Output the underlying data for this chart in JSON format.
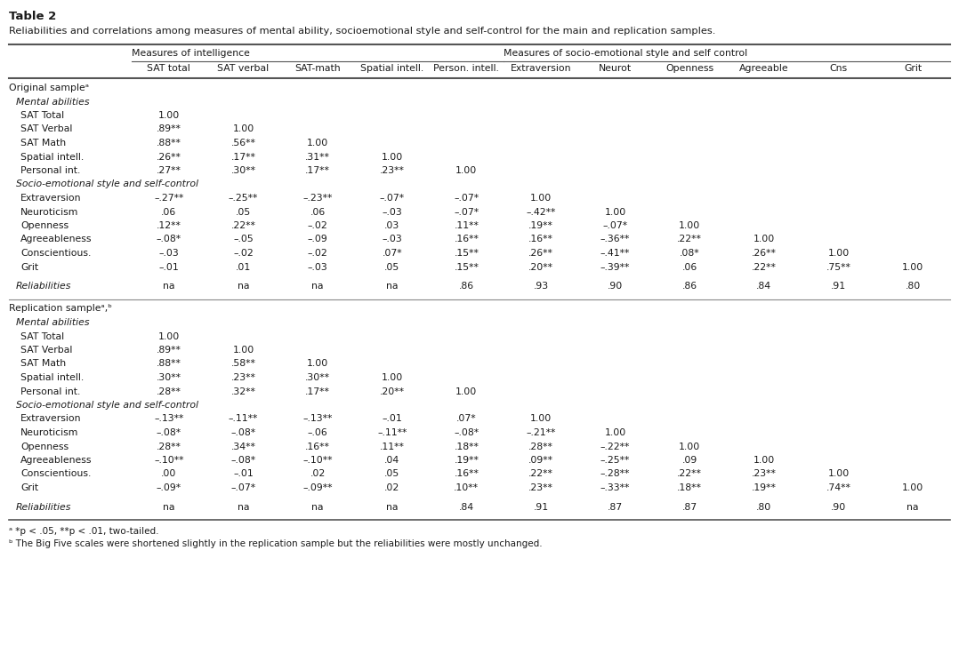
{
  "title": "Table 2",
  "subtitle": "Reliabilities and correlations among measures of mental ability, socioemotional style and self-control for the main and replication samples.",
  "col_group1_label": "Measures of intelligence",
  "col_group2_label": "Measures of socio-emotional style and self control",
  "col_headers": [
    "SAT total",
    "SAT verbal",
    "SAT-math",
    "Spatial intell.",
    "Person. intell.",
    "Extraversion",
    "Neurot",
    "Openness",
    "Agreeable",
    "Cns",
    "Grit"
  ],
  "footnote_a": "ᵃ *p < .05, **p < .01, two-tailed.",
  "footnote_b": "ᵇ The Big Five scales were shortened slightly in the replication sample but the reliabilities were mostly unchanged.",
  "sections": [
    {
      "header": "Original sampleᵃ",
      "subsections": [
        {
          "label": "Mental abilities",
          "rows": [
            {
              "label": "SAT Total",
              "values": [
                "1.00",
                "",
                "",
                "",
                "",
                "",
                "",
                "",
                "",
                "",
                ""
              ]
            },
            {
              "label": "SAT Verbal",
              "values": [
                ".89**",
                "1.00",
                "",
                "",
                "",
                "",
                "",
                "",
                "",
                "",
                ""
              ]
            },
            {
              "label": "SAT Math",
              "values": [
                ".88**",
                ".56**",
                "1.00",
                "",
                "",
                "",
                "",
                "",
                "",
                "",
                ""
              ]
            },
            {
              "label": "Spatial intell.",
              "values": [
                ".26**",
                ".17**",
                ".31**",
                "1.00",
                "",
                "",
                "",
                "",
                "",
                "",
                ""
              ]
            },
            {
              "label": "Personal int.",
              "values": [
                ".27**",
                ".30**",
                ".17**",
                ".23**",
                "1.00",
                "",
                "",
                "",
                "",
                "",
                ""
              ]
            }
          ]
        },
        {
          "label": "Socio-emotional style and self-control",
          "rows": [
            {
              "label": "Extraversion",
              "values": [
                "–.27**",
                "–.25**",
                "–.23**",
                "–.07*",
                "–.07*",
                "1.00",
                "",
                "",
                "",
                "",
                ""
              ]
            },
            {
              "label": "Neuroticism",
              "values": [
                ".06",
                ".05",
                ".06",
                "–.03",
                "–.07*",
                "–.42**",
                "1.00",
                "",
                "",
                "",
                ""
              ]
            },
            {
              "label": "Openness",
              "values": [
                ".12**",
                ".22**",
                "–.02",
                ".03",
                ".11**",
                ".19**",
                "–.07*",
                "1.00",
                "",
                "",
                ""
              ]
            },
            {
              "label": "Agreeableness",
              "values": [
                "–.08*",
                "–.05",
                "–.09",
                "–.03",
                ".16**",
                ".16**",
                "–.36**",
                ".22**",
                "1.00",
                "",
                ""
              ]
            },
            {
              "label": "Conscientious.",
              "values": [
                "–.03",
                "–.02",
                "–.02",
                ".07*",
                ".15**",
                ".26**",
                "–.41**",
                ".08*",
                ".26**",
                "1.00",
                ""
              ]
            },
            {
              "label": "Grit",
              "values": [
                "–.01",
                ".01",
                "–.03",
                ".05",
                ".15**",
                ".20**",
                "–.39**",
                ".06",
                ".22**",
                ".75**",
                "1.00"
              ]
            }
          ]
        }
      ],
      "reliabilities": {
        "label": "Reliabilities",
        "values": [
          "na",
          "na",
          "na",
          "na",
          ".86",
          ".93",
          ".90",
          ".86",
          ".84",
          ".91",
          ".80"
        ]
      }
    },
    {
      "header": "Replication sampleᵃ,ᵇ",
      "subsections": [
        {
          "label": "Mental abilities",
          "rows": [
            {
              "label": "SAT Total",
              "values": [
                "1.00",
                "",
                "",
                "",
                "",
                "",
                "",
                "",
                "",
                "",
                ""
              ]
            },
            {
              "label": "SAT Verbal",
              "values": [
                ".89**",
                "1.00",
                "",
                "",
                "",
                "",
                "",
                "",
                "",
                "",
                ""
              ]
            },
            {
              "label": "SAT Math",
              "values": [
                ".88**",
                ".58**",
                "1.00",
                "",
                "",
                "",
                "",
                "",
                "",
                "",
                ""
              ]
            },
            {
              "label": "Spatial intell.",
              "values": [
                ".30**",
                ".23**",
                ".30**",
                "1.00",
                "",
                "",
                "",
                "",
                "",
                "",
                ""
              ]
            },
            {
              "label": "Personal int.",
              "values": [
                ".28**",
                ".32**",
                ".17**",
                ".20**",
                "1.00",
                "",
                "",
                "",
                "",
                "",
                ""
              ]
            }
          ]
        },
        {
          "label": "Socio-emotional style and self-control",
          "rows": [
            {
              "label": "Extraversion",
              "values": [
                "–.13**",
                "–.11**",
                "–.13**",
                "–.01",
                ".07*",
                "1.00",
                "",
                "",
                "",
                "",
                ""
              ]
            },
            {
              "label": "Neuroticism",
              "values": [
                "–.08*",
                "–.08*",
                "–.06",
                "–.11**",
                "–.08*",
                "–.21**",
                "1.00",
                "",
                "",
                "",
                ""
              ]
            },
            {
              "label": "Openness",
              "values": [
                ".28**",
                ".34**",
                ".16**",
                ".11**",
                ".18**",
                ".28**",
                "–.22**",
                "1.00",
                "",
                "",
                ""
              ]
            },
            {
              "label": "Agreeableness",
              "values": [
                "–.10**",
                "–.08*",
                "–.10**",
                ".04",
                ".19**",
                ".09**",
                "–.25**",
                ".09",
                "1.00",
                "",
                ""
              ]
            },
            {
              "label": "Conscientious.",
              "values": [
                ".00",
                "–.01",
                ".02",
                ".05",
                ".16**",
                ".22**",
                "–.28**",
                ".22**",
                ".23**",
                "1.00",
                ""
              ]
            },
            {
              "label": "Grit",
              "values": [
                "–.09*",
                "–.07*",
                "–.09**",
                ".02",
                ".10**",
                ".23**",
                "–.33**",
                ".18**",
                ".19**",
                ".74**",
                "1.00"
              ]
            }
          ]
        }
      ],
      "reliabilities": {
        "label": "Reliabilities",
        "values": [
          "na",
          "na",
          "na",
          "na",
          ".84",
          ".91",
          ".87",
          ".87",
          ".80",
          ".90",
          "na"
        ]
      }
    }
  ],
  "text_color": "#1a1a1a",
  "background_color": "#ffffff"
}
